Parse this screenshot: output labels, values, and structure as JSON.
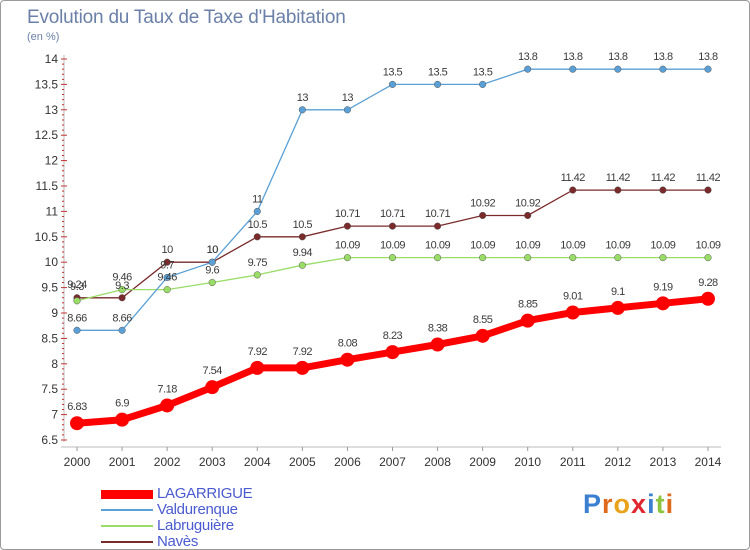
{
  "header": {
    "title": "Evolution du Taux de Taxe d'Habitation",
    "subtitle": "(en %)"
  },
  "logo": {
    "text": "Proxiti",
    "letters": [
      {
        "ch": "P",
        "color": "#3a7fd0"
      },
      {
        "ch": "r",
        "color": "#e06a1b"
      },
      {
        "ch": "o",
        "color": "#e8a21c"
      },
      {
        "ch": "x",
        "color": "#e0262f"
      },
      {
        "ch": "i",
        "color": "#3a7fd0"
      },
      {
        "ch": "t",
        "color": "#8cc63f"
      },
      {
        "ch": "i",
        "color": "#e06a1b"
      }
    ]
  },
  "chart_data": {
    "type": "line",
    "title": "Evolution du Taux de Taxe d'Habitation",
    "subtitle": "(en %)",
    "xlabel": "",
    "ylabel": "",
    "x": [
      "2000",
      "2001",
      "2002",
      "2003",
      "2004",
      "2005",
      "2006",
      "2007",
      "2008",
      "2009",
      "2010",
      "2011",
      "2012",
      "2013",
      "2014"
    ],
    "ylim": [
      6.5,
      14
    ],
    "yticks": [
      "6.5",
      "7",
      "7.5",
      "8",
      "8.5",
      "9",
      "9.5",
      "10",
      "10.5",
      "11",
      "11.5",
      "12",
      "12.5",
      "13",
      "13.5",
      "14"
    ],
    "grid": false,
    "legend_position": "bottom-left",
    "series": [
      {
        "name": "LAGARRIGUE",
        "color": "#ff0000",
        "emphasis": true,
        "values": [
          6.83,
          6.9,
          7.18,
          7.54,
          7.92,
          7.92,
          8.08,
          8.23,
          8.38,
          8.55,
          8.85,
          9.01,
          9.1,
          9.19,
          9.28
        ],
        "labels": [
          "6.83",
          "6.9",
          "7.18",
          "7.54",
          "7.92",
          "7.92",
          "8.08",
          "8.23",
          "8.38",
          "8.55",
          "8.85",
          "9.01",
          "9.1",
          "9.19",
          "9.28"
        ]
      },
      {
        "name": "Valdurenque",
        "color": "#5aa0d6",
        "values": [
          8.66,
          8.66,
          9.7,
          10,
          11,
          13,
          13,
          13.5,
          13.5,
          13.5,
          13.8,
          13.8,
          13.8,
          13.8,
          13.8
        ],
        "labels": [
          "8.66",
          "8.66",
          "9.7",
          "10",
          "11",
          "13",
          "13",
          "13.5",
          "13.5",
          "13.5",
          "13.8",
          "13.8",
          "13.8",
          "13.8",
          "13.8"
        ]
      },
      {
        "name": "Labruguière",
        "color": "#99dd66",
        "values": [
          9.24,
          9.46,
          9.46,
          9.6,
          9.75,
          9.94,
          10.09,
          10.09,
          10.09,
          10.09,
          10.09,
          10.09,
          10.09,
          10.09,
          10.09
        ],
        "labels": [
          "9.24",
          "9.46",
          "9.46",
          "9.6",
          "9.75",
          "9.94",
          "10.09",
          "10.09",
          "10.09",
          "10.09",
          "10.09",
          "10.09",
          "10.09",
          "10.09",
          "10.09"
        ]
      },
      {
        "name": "Navès",
        "color": "#7a2a2a",
        "values": [
          9.3,
          9.3,
          10,
          10,
          10.5,
          10.5,
          10.71,
          10.71,
          10.71,
          10.92,
          10.92,
          11.42,
          11.42,
          11.42,
          11.42
        ],
        "labels": [
          "9.3",
          "9.3",
          "10",
          "10",
          "10.5",
          "10.5",
          "10.71",
          "10.71",
          "10.71",
          "10.92",
          "10.92",
          "11.42",
          "11.42",
          "11.42",
          "11.42"
        ]
      }
    ]
  }
}
